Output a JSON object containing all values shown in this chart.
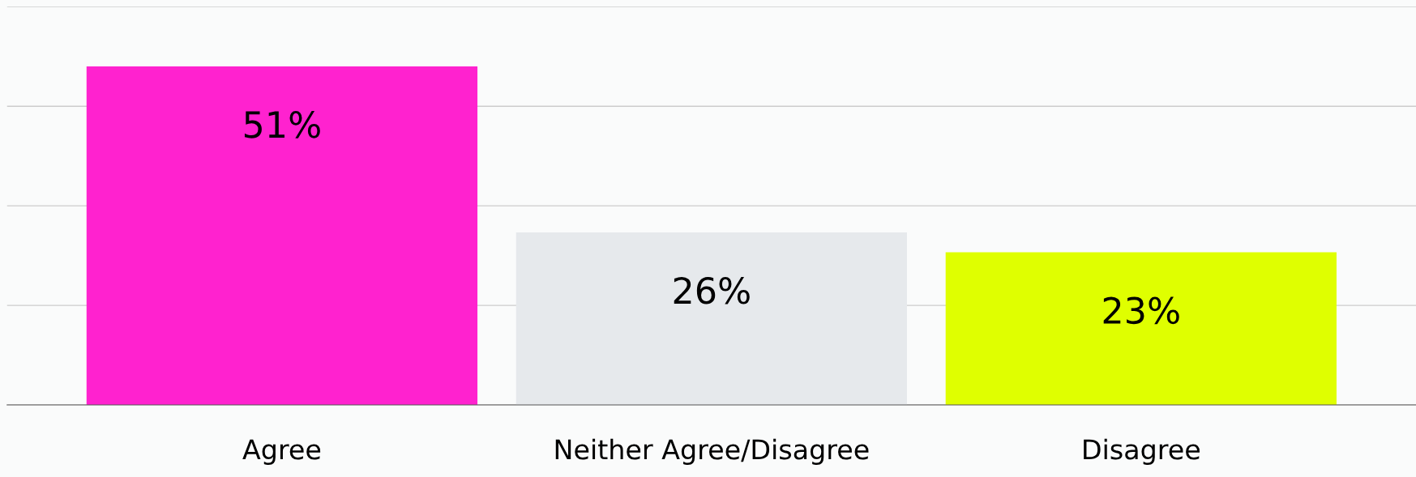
{
  "chart_data": {
    "type": "bar",
    "categories": [
      "Agree",
      "Neither Agree/Disagree",
      "Disagree"
    ],
    "values": [
      51,
      26,
      23
    ],
    "colors": [
      "#ff22cf",
      "#e6e9ec",
      "#dfff00"
    ],
    "value_labels": [
      "51%",
      "26%",
      "23%"
    ],
    "ylim": [
      0,
      60
    ],
    "yticks": [
      {
        "value": 0,
        "label": null
      },
      {
        "value": 15,
        "label": null
      },
      {
        "value": 30,
        "label": null
      },
      {
        "value": 45,
        "label": null
      },
      {
        "value": 60,
        "label": null
      }
    ],
    "grid": "y",
    "tick_labels": "x"
  }
}
